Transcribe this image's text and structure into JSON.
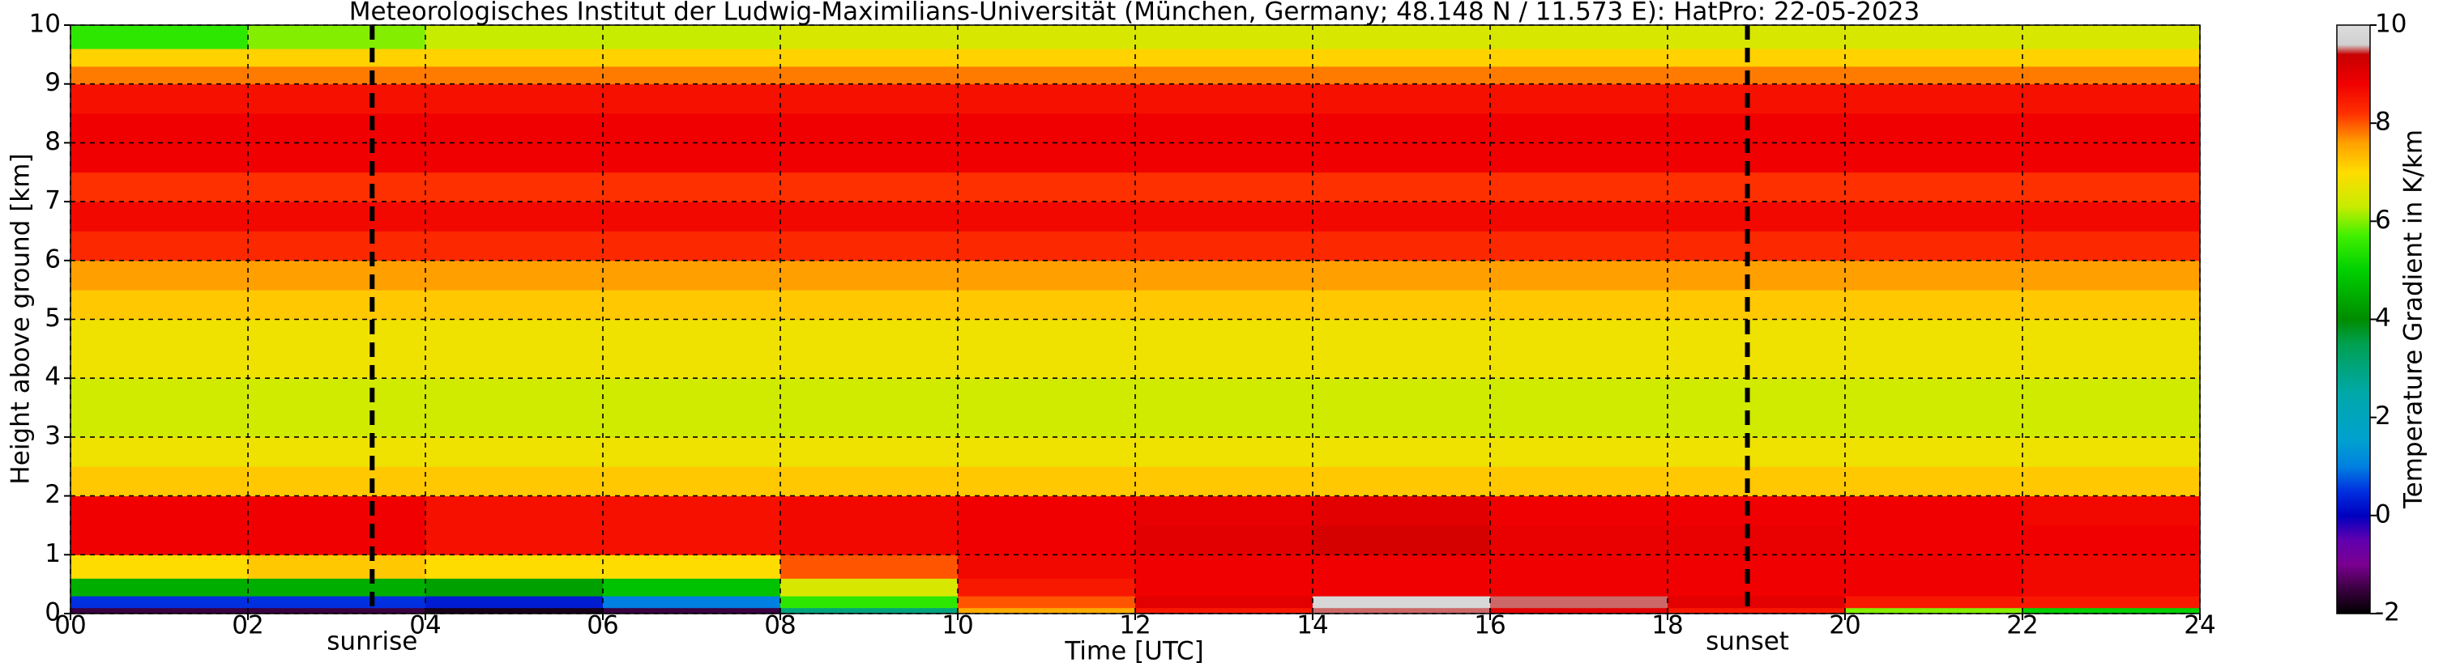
{
  "chart_data": {
    "type": "heatmap",
    "title": "Meteorologisches Institut der Ludwig-Maximilians-Universität (München, Germany; 48.148 N / 11.573 E):    HatPro: 22-05-2023",
    "x_label": "Time [UTC]",
    "y_label": "Height above ground [km]",
    "colorbar_label": "Temperature Gradient in K/km",
    "xlim": [
      0,
      24
    ],
    "ylim": [
      0,
      10
    ],
    "xticks": [
      {
        "value": 0,
        "label": "00"
      },
      {
        "value": 2,
        "label": "02"
      },
      {
        "value": 4,
        "label": "04"
      },
      {
        "value": 6,
        "label": "06"
      },
      {
        "value": 8,
        "label": "08"
      },
      10,
      12,
      14,
      16,
      18,
      20,
      22,
      24
    ],
    "yticks": [
      0,
      1,
      2,
      3,
      4,
      5,
      6,
      7,
      8,
      9,
      10
    ],
    "grid": true,
    "x_edges": [
      0,
      2,
      4,
      6,
      8,
      10,
      12,
      14,
      16,
      18,
      20,
      22,
      24
    ],
    "y_edges": [
      0,
      0.1,
      0.3,
      0.6,
      1,
      1.5,
      2,
      2.5,
      3,
      4,
      5,
      5.5,
      6,
      6.5,
      7,
      7.5,
      8.5,
      9,
      9.3,
      9.6,
      10
    ],
    "z": [
      [
        -1.5,
        -1.5,
        -1.8,
        -1.5,
        3,
        7.5,
        8.5,
        9.5,
        9,
        8.5,
        6,
        5
      ],
      [
        0.5,
        0.5,
        0.3,
        1,
        5.5,
        8,
        9,
        9.8,
        9.5,
        9,
        8.5,
        8.5
      ],
      [
        4.5,
        4.5,
        4.3,
        4.8,
        6.5,
        8.5,
        8.8,
        8.8,
        8.8,
        8.8,
        8.8,
        8.7
      ],
      [
        7,
        7.2,
        7,
        7,
        8,
        8.7,
        8.8,
        8.8,
        8.8,
        8.8,
        8.8,
        8.7
      ],
      [
        8.8,
        8.8,
        8.6,
        8.6,
        8.7,
        8.8,
        9,
        9.2,
        8.9,
        8.9,
        8.8,
        8.8
      ],
      [
        8.8,
        8.8,
        8.6,
        8.6,
        8.7,
        8.8,
        8.9,
        9,
        8.8,
        8.8,
        8.8,
        8.7
      ],
      [
        7.2,
        7.2,
        7.2,
        7.2,
        7.2,
        7.2,
        7.2,
        7.2,
        7.2,
        7.2,
        7.2,
        7.2
      ],
      [
        6.8,
        6.8,
        6.8,
        6.8,
        6.8,
        6.8,
        6.8,
        6.8,
        6.8,
        6.8,
        6.8,
        6.8
      ],
      [
        6.4,
        6.4,
        6.4,
        6.4,
        6.4,
        6.4,
        6.4,
        6.4,
        6.4,
        6.4,
        6.4,
        6.4
      ],
      [
        6.8,
        6.8,
        6.8,
        6.8,
        6.8,
        6.8,
        6.8,
        6.8,
        6.8,
        6.8,
        6.8,
        6.8
      ],
      [
        7.2,
        7.2,
        7.2,
        7.2,
        7.2,
        7.2,
        7.2,
        7.2,
        7.2,
        7.2,
        7.2,
        7.2
      ],
      [
        7.6,
        7.6,
        7.6,
        7.6,
        7.6,
        7.6,
        7.6,
        7.6,
        7.6,
        7.6,
        7.6,
        7.6
      ],
      [
        8.3,
        8.3,
        8.3,
        8.3,
        8.3,
        8.3,
        8.3,
        8.3,
        8.3,
        8.3,
        8.3,
        8.3
      ],
      [
        8.7,
        8.7,
        8.7,
        8.7,
        8.7,
        8.7,
        8.7,
        8.7,
        8.7,
        8.7,
        8.7,
        8.7
      ],
      [
        8.2,
        8.2,
        8.2,
        8.2,
        8.2,
        8.2,
        8.2,
        8.2,
        8.2,
        8.2,
        8.2,
        8.2
      ],
      [
        8.8,
        8.8,
        8.8,
        8.8,
        8.8,
        8.8,
        8.8,
        8.8,
        8.8,
        8.8,
        8.8,
        8.8
      ],
      [
        8.6,
        8.6,
        8.6,
        8.6,
        8.6,
        8.6,
        8.6,
        8.6,
        8.6,
        8.6,
        8.6,
        8.6
      ],
      [
        7.8,
        7.8,
        7.8,
        7.8,
        7.8,
        7.8,
        7.8,
        7.8,
        7.8,
        7.8,
        7.8,
        7.8
      ],
      [
        7.1,
        7.1,
        7.1,
        7.1,
        7.1,
        7.1,
        7.1,
        7.1,
        7.1,
        7.1,
        7.1,
        7.1
      ],
      [
        5.5,
        6,
        6.3,
        6.3,
        6.5,
        6.5,
        6.5,
        6.5,
        6.5,
        6.5,
        6.5,
        6.5
      ]
    ],
    "zlim": [
      -2,
      10
    ],
    "zticks": [
      -2,
      0,
      2,
      4,
      6,
      8,
      10
    ],
    "colorscale": [
      [
        -2,
        "#000000"
      ],
      [
        -1.5,
        "#3a0040"
      ],
      [
        -1,
        "#7a0090"
      ],
      [
        -0.5,
        "#6000b0"
      ],
      [
        0,
        "#0000c0"
      ],
      [
        0.5,
        "#0030e0"
      ],
      [
        1,
        "#0080e0"
      ],
      [
        1.5,
        "#00a0d0"
      ],
      [
        2.5,
        "#00a8a8"
      ],
      [
        3.5,
        "#00a050"
      ],
      [
        4,
        "#008c00"
      ],
      [
        5,
        "#00d000"
      ],
      [
        5.7,
        "#40f000"
      ],
      [
        6.3,
        "#c8ec00"
      ],
      [
        7,
        "#ffdc00"
      ],
      [
        7.6,
        "#ffa000"
      ],
      [
        8.2,
        "#ff3000"
      ],
      [
        8.8,
        "#f00000"
      ],
      [
        9.4,
        "#c80000"
      ],
      [
        9.6,
        "#d0d0d0"
      ],
      [
        10,
        "#dddddd"
      ]
    ],
    "annotations": [
      {
        "x": 3.4,
        "label": "sunrise"
      },
      {
        "x": 18.9,
        "label": "sunset"
      }
    ]
  }
}
